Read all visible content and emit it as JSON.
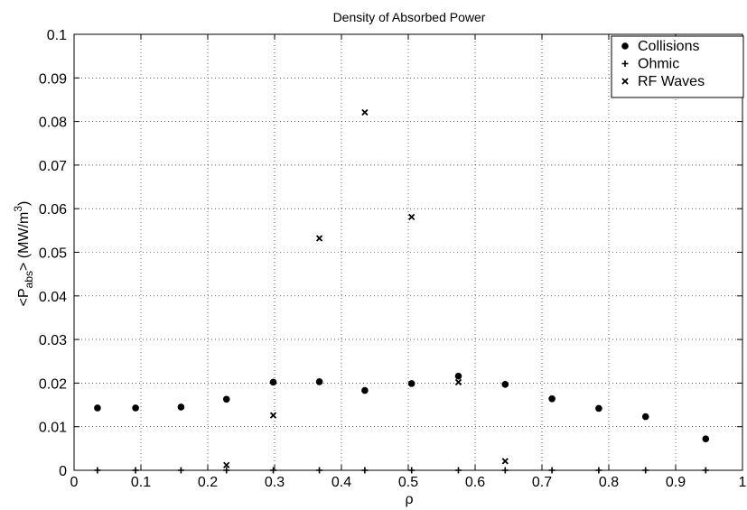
{
  "chart_data": {
    "type": "scatter",
    "title": "Density of Absorbed Power",
    "xlabel": "ρ",
    "ylabel": {
      "prefix": "<P",
      "subscript": "abs",
      "middle": "> (MW/m",
      "superscript": "3",
      "suffix": ")"
    },
    "xlim": [
      0,
      1
    ],
    "ylim": [
      0,
      0.1
    ],
    "grid": true,
    "legend_position": "top-right",
    "x_ticks": [
      0,
      0.1,
      0.2,
      0.3,
      0.4,
      0.5,
      0.6,
      0.7,
      0.8,
      0.9,
      1
    ],
    "x_tick_labels": [
      "0",
      "0.1",
      "0.2",
      "0.3",
      "0.4",
      "0.5",
      "0.6",
      "0.7",
      "0.8",
      "0.9",
      "1"
    ],
    "y_ticks": [
      0,
      0.01,
      0.02,
      0.03,
      0.04,
      0.05,
      0.06,
      0.07,
      0.08,
      0.09,
      0.1
    ],
    "y_tick_labels": [
      "0",
      "0.01",
      "0.02",
      "0.03",
      "0.04",
      "0.05",
      "0.06",
      "0.07",
      "0.08",
      "0.09",
      "0.1"
    ],
    "series": [
      {
        "name": "Collisions",
        "marker": "dot",
        "x": [
          0.035,
          0.092,
          0.16,
          0.228,
          0.298,
          0.367,
          0.435,
          0.505,
          0.575,
          0.645,
          0.715,
          0.785,
          0.855,
          0.945
        ],
        "y": [
          0.0143,
          0.0143,
          0.0145,
          0.0163,
          0.0202,
          0.0203,
          0.0183,
          0.0199,
          0.0216,
          0.0197,
          0.0164,
          0.0142,
          0.0123,
          0.0072
        ]
      },
      {
        "name": "Ohmic",
        "marker": "plus",
        "x": [
          0.035,
          0.092,
          0.16,
          0.228,
          0.298,
          0.367,
          0.435,
          0.505,
          0.575,
          0.645,
          0.715,
          0.785,
          0.855,
          0.945
        ],
        "y": [
          0,
          0,
          0,
          0,
          0,
          0,
          0,
          0,
          0,
          0,
          0,
          0,
          0,
          0
        ]
      },
      {
        "name": "RF Waves",
        "marker": "x",
        "x": [
          0.228,
          0.298,
          0.367,
          0.435,
          0.505,
          0.575,
          0.645
        ],
        "y": [
          0.0012,
          0.0126,
          0.0532,
          0.0821,
          0.0581,
          0.0202,
          0.0021
        ]
      }
    ]
  }
}
